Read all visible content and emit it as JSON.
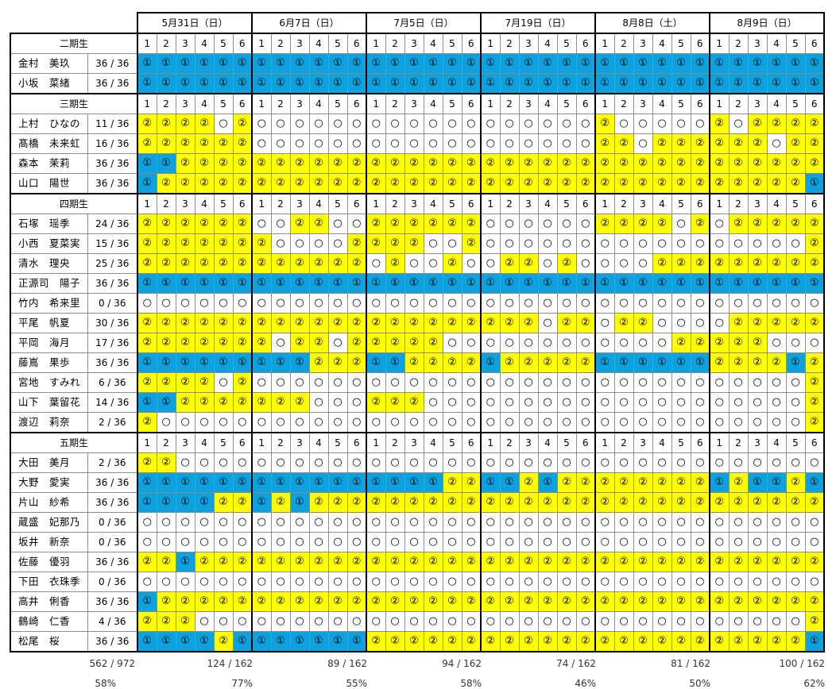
{
  "dates": [
    "5月31日（日）",
    "6月7日（日）",
    "7月5日（日）",
    "7月19日（日）",
    "8月8日（土）",
    "8月9日（日）"
  ],
  "slot_numbers": [
    "1",
    "2",
    "3",
    "4",
    "5",
    "6"
  ],
  "symbols": {
    "b": "①",
    "y": "②",
    "w": "○"
  },
  "colors": {
    "blue": "#0fa1de",
    "yellow": "#ffff00",
    "white": "#ffffff"
  },
  "sections": [
    {
      "title": "二期生",
      "members": [
        {
          "name": "金村　美玖",
          "count": "36 / 36",
          "cells": "bbbbbbbbbbbbbbbbbbbbbbbbbbbbbbbbbbbb"
        },
        {
          "name": "小坂　菜緒",
          "count": "36 / 36",
          "cells": "bbbbbbbbbbbbbbbbbbbbbbbbbbbbbbbbbbbb"
        }
      ]
    },
    {
      "title": "三期生",
      "members": [
        {
          "name": "上村　ひなの",
          "count": "11 / 36",
          "cells": "yyyywywwwwwwwwwwwwwwwwwwywwwwwywyyyy"
        },
        {
          "name": "髙橋　未来虹",
          "count": "16 / 36",
          "cells": "yyyyyywwwwwwwwwwwwwwwwwwyywyyyyyywyy"
        },
        {
          "name": "森本　茉莉",
          "count": "36 / 36",
          "cells": "bbyyyyyyyyyyyyyyyyyyyyyyyyyyyyyyyyyy"
        },
        {
          "name": "山口　陽世",
          "count": "36 / 36",
          "cells": "byyyyyyyyyyyyyyyyyyyyyyyyyyyyyyyyyyb"
        }
      ]
    },
    {
      "title": "四期生",
      "members": [
        {
          "name": "石塚　瑶季",
          "count": "24 / 36",
          "cells": "yyyyyywwyywwyyyyyywwwwwwyyyywywyyyyy"
        },
        {
          "name": "小西　夏菜実",
          "count": "15 / 36",
          "cells": "yyyyyyywwwwyyyywwywwwwwwwwwwwwwwwwwy"
        },
        {
          "name": "清水　理央",
          "count": "25 / 36",
          "cells": "yyyyyyyyyyyywywwywwyywywwwwyyyyyyyyy"
        },
        {
          "name": "正源司　陽子",
          "count": "36 / 36",
          "cells": "bbbbbbbbbbbbbbbbbbbbbbbbbbbbbbbbbbbb"
        },
        {
          "name": "竹内　希来里",
          "count": "0 / 36",
          "cells": "wwwwwwwwwwwwwwwwwwwwwwwwwwwwwwwwwwww"
        },
        {
          "name": "平尾　帆夏",
          "count": "30 / 36",
          "cells": "yyyyyyyyyyyyyyyyyyyyywyywyywwwwyyyyy"
        },
        {
          "name": "平岡　海月",
          "count": "17 / 36",
          "cells": "yyyyyyywyywyyyyywwwwwwwwwwwwyyyyywww"
        },
        {
          "name": "藤嶌　果歩",
          "count": "36 / 36",
          "cells": "bbbbbbbbbyyybbyyyybyyyyybbbbbbyyyyby"
        },
        {
          "name": "宮地　すみれ",
          "count": "6 / 36",
          "cells": "yyyywywwwwwwwwwwwwwwwwwwwwwwwwwwwwwy"
        },
        {
          "name": "山下　葉留花",
          "count": "14 / 36",
          "cells": "bbyyyyyyywwwyyywwwwwwwwwwwwwwwwwwwwy"
        },
        {
          "name": "渡辺　莉奈",
          "count": "2 / 36",
          "cells": "ywwwwwwwwwwwwwwwwwwwwwwwwwwwwwwwwwwy"
        }
      ]
    },
    {
      "title": "五期生",
      "members": [
        {
          "name": "大田　美月",
          "count": "2 / 36",
          "cells": "yywwwwwwwwwwwwwwwwwwwwwwwwwwwwwwwwww"
        },
        {
          "name": "大野　愛実",
          "count": "36 / 36",
          "cells": "bbbbbbbbbbbbbbbbyybbybyyyyyyyybybbyb"
        },
        {
          "name": "片山　紗希",
          "count": "36 / 36",
          "cells": "bbbbyybybyyyyyyyyyyyyyyyyyyyyyyyyyyy"
        },
        {
          "name": "蔵盛　妃那乃",
          "count": "0 / 36",
          "cells": "wwwwwwwwwwwwwwwwwwwwwwwwwwwwwwwwwwww"
        },
        {
          "name": "坂井　新奈",
          "count": "0 / 36",
          "cells": "wwwwwwwwwwwwwwwwwwwwwwwwwwwwwwwwwwww"
        },
        {
          "name": "佐藤　優羽",
          "count": "36 / 36",
          "cells": "yybyyyyyyyyyyyyyyyyyyyyyyyyyyyyyyyyy"
        },
        {
          "name": "下田　衣珠季",
          "count": "0 / 36",
          "cells": "wwwwwwwwwwwwwwwwwwwwwwwwwwwwwwwwwwww"
        },
        {
          "name": "高井　俐香",
          "count": "36 / 36",
          "cells": "byyyyyyyyyyyyyyyyyyyyyyyyyyyyyyyyyyy"
        },
        {
          "name": "鶴崎　仁香",
          "count": "4 / 36",
          "cells": "yyywwwwwwwwwwwwwwwwwwwwwwwwwwwwwwwwy"
        },
        {
          "name": "松尾　桜",
          "count": "36 / 36",
          "cells": "bbbbybbbbbbbyyyyyyyyyyyyyyyyyyyyyyyb"
        }
      ]
    }
  ],
  "summary": {
    "total_fraction": "562 / 972",
    "total_percent": "58%",
    "per_date": [
      {
        "fraction": "124 / 162",
        "percent": "77%"
      },
      {
        "fraction": "89 / 162",
        "percent": "55%"
      },
      {
        "fraction": "94 / 162",
        "percent": "58%"
      },
      {
        "fraction": "74 / 162",
        "percent": "46%"
      },
      {
        "fraction": "81 / 162",
        "percent": "50%"
      },
      {
        "fraction": "100 / 162",
        "percent": "62%"
      }
    ]
  }
}
